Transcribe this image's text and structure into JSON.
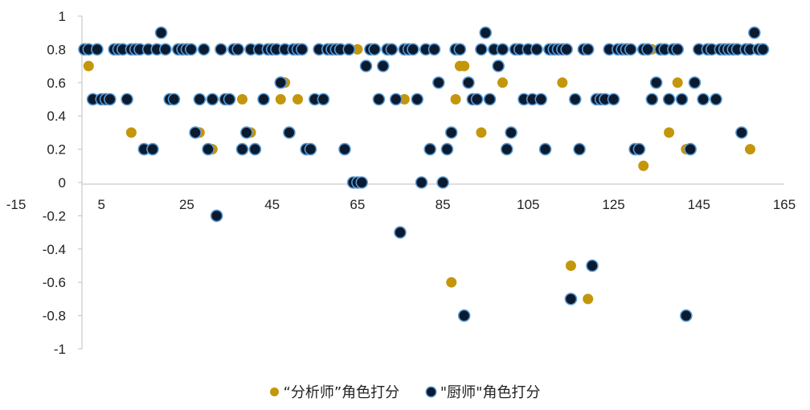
{
  "chart_data": {
    "type": "scatter",
    "xlim": [
      -15,
      165
    ],
    "ylim": [
      -1,
      1
    ],
    "x_ticks": [
      -15,
      5,
      25,
      45,
      65,
      85,
      105,
      125,
      145,
      165
    ],
    "x_tick_labels": [
      "-15",
      "5",
      "25",
      "45",
      "65",
      "85",
      "105",
      "125",
      "145",
      "165"
    ],
    "y_ticks": [
      -1,
      -0.8,
      -0.6,
      -0.4,
      -0.2,
      0,
      0.2,
      0.4,
      0.6,
      0.8,
      1
    ],
    "y_tick_labels": [
      "-1",
      "-0.8",
      "-0.6",
      "-0.4",
      "-0.2",
      "0",
      "0.2",
      "0.4",
      "0.6",
      "0.8",
      "1"
    ],
    "grid": false,
    "legend_position": "bottom",
    "series": [
      {
        "name": "“分析师”角色打分",
        "color": "#C4960C",
        "stroke": "#C4960C",
        "points": [
          [
            2,
            0.7
          ],
          [
            12,
            0.3
          ],
          [
            28,
            0.3
          ],
          [
            31,
            0.2
          ],
          [
            38,
            0.5
          ],
          [
            40,
            0.3
          ],
          [
            47,
            0.5
          ],
          [
            48,
            0.6
          ],
          [
            51,
            0.5
          ],
          [
            65,
            0.8
          ],
          [
            76,
            0.5
          ],
          [
            84,
            0.6
          ],
          [
            87,
            -0.6
          ],
          [
            88,
            0.5
          ],
          [
            89,
            0.7
          ],
          [
            90,
            0.7
          ],
          [
            92,
            0.5
          ],
          [
            94,
            0.3
          ],
          [
            99,
            0.6
          ],
          [
            113,
            0.6
          ],
          [
            115,
            -0.5
          ],
          [
            119,
            -0.7
          ],
          [
            132,
            0.1
          ],
          [
            134,
            0.8
          ],
          [
            138,
            0.3
          ],
          [
            140,
            0.6
          ],
          [
            142,
            0.2
          ],
          [
            157,
            0.2
          ]
        ]
      },
      {
        "name": "\"厨师\"角色打分",
        "color": "#0B1A2E",
        "stroke": "#5A9BD5",
        "points": [
          [
            1,
            0.8
          ],
          [
            2,
            0.8
          ],
          [
            3,
            0.5
          ],
          [
            4,
            0.8
          ],
          [
            5,
            0.5
          ],
          [
            6,
            0.5
          ],
          [
            7,
            0.5
          ],
          [
            8,
            0.8
          ],
          [
            9,
            0.8
          ],
          [
            10,
            0.8
          ],
          [
            11,
            0.5
          ],
          [
            12,
            0.8
          ],
          [
            13,
            0.8
          ],
          [
            14,
            0.8
          ],
          [
            15,
            0.2
          ],
          [
            16,
            0.8
          ],
          [
            17,
            0.2
          ],
          [
            18,
            0.8
          ],
          [
            19,
            0.9
          ],
          [
            20,
            0.8
          ],
          [
            21,
            0.5
          ],
          [
            22,
            0.5
          ],
          [
            23,
            0.8
          ],
          [
            24,
            0.8
          ],
          [
            25,
            0.8
          ],
          [
            26,
            0.8
          ],
          [
            27,
            0.3
          ],
          [
            28,
            0.5
          ],
          [
            29,
            0.8
          ],
          [
            30,
            0.2
          ],
          [
            31,
            0.5
          ],
          [
            32,
            -0.2
          ],
          [
            33,
            0.8
          ],
          [
            34,
            0.5
          ],
          [
            35,
            0.5
          ],
          [
            36,
            0.8
          ],
          [
            37,
            0.8
          ],
          [
            38,
            0.2
          ],
          [
            39,
            0.3
          ],
          [
            40,
            0.8
          ],
          [
            41,
            0.2
          ],
          [
            42,
            0.8
          ],
          [
            43,
            0.5
          ],
          [
            44,
            0.8
          ],
          [
            45,
            0.8
          ],
          [
            46,
            0.8
          ],
          [
            47,
            0.6
          ],
          [
            48,
            0.8
          ],
          [
            49,
            0.3
          ],
          [
            50,
            0.8
          ],
          [
            51,
            0.8
          ],
          [
            52,
            0.8
          ],
          [
            53,
            0.2
          ],
          [
            54,
            0.2
          ],
          [
            55,
            0.5
          ],
          [
            56,
            0.8
          ],
          [
            57,
            0.5
          ],
          [
            58,
            0.8
          ],
          [
            59,
            0.8
          ],
          [
            60,
            0.8
          ],
          [
            61,
            0.8
          ],
          [
            62,
            0.2
          ],
          [
            63,
            0.8
          ],
          [
            64,
            0
          ],
          [
            65,
            0
          ],
          [
            66,
            0
          ],
          [
            67,
            0.7
          ],
          [
            68,
            0.8
          ],
          [
            69,
            0.8
          ],
          [
            70,
            0.5
          ],
          [
            71,
            0.7
          ],
          [
            72,
            0.8
          ],
          [
            73,
            0.8
          ],
          [
            74,
            0.5
          ],
          [
            75,
            -0.3
          ],
          [
            76,
            0.8
          ],
          [
            77,
            0.8
          ],
          [
            78,
            0.8
          ],
          [
            79,
            0.5
          ],
          [
            80,
            0
          ],
          [
            81,
            0.8
          ],
          [
            82,
            0.2
          ],
          [
            83,
            0.8
          ],
          [
            84,
            0.6
          ],
          [
            85,
            0
          ],
          [
            86,
            0.2
          ],
          [
            87,
            0.3
          ],
          [
            88,
            0.8
          ],
          [
            89,
            0.8
          ],
          [
            90,
            -0.8
          ],
          [
            91,
            0.6
          ],
          [
            92,
            0.5
          ],
          [
            93,
            0.5
          ],
          [
            94,
            0.8
          ],
          [
            95,
            0.9
          ],
          [
            96,
            0.5
          ],
          [
            97,
            0.8
          ],
          [
            98,
            0.7
          ],
          [
            99,
            0.8
          ],
          [
            100,
            0.2
          ],
          [
            101,
            0.3
          ],
          [
            102,
            0.8
          ],
          [
            103,
            0.8
          ],
          [
            104,
            0.5
          ],
          [
            105,
            0.8
          ],
          [
            106,
            0.5
          ],
          [
            107,
            0.8
          ],
          [
            108,
            0.5
          ],
          [
            109,
            0.2
          ],
          [
            110,
            0.8
          ],
          [
            111,
            0.8
          ],
          [
            112,
            0.8
          ],
          [
            113,
            0.8
          ],
          [
            114,
            0.8
          ],
          [
            115,
            -0.7
          ],
          [
            116,
            0.5
          ],
          [
            117,
            0.2
          ],
          [
            118,
            0.8
          ],
          [
            119,
            0.8
          ],
          [
            120,
            -0.5
          ],
          [
            121,
            0.5
          ],
          [
            122,
            0.5
          ],
          [
            123,
            0.5
          ],
          [
            124,
            0.8
          ],
          [
            125,
            0.5
          ],
          [
            126,
            0.8
          ],
          [
            127,
            0.8
          ],
          [
            128,
            0.8
          ],
          [
            129,
            0.8
          ],
          [
            130,
            0.2
          ],
          [
            131,
            0.2
          ],
          [
            132,
            0.8
          ],
          [
            133,
            0.8
          ],
          [
            134,
            0.5
          ],
          [
            135,
            0.6
          ],
          [
            136,
            0.8
          ],
          [
            137,
            0.8
          ],
          [
            138,
            0.5
          ],
          [
            139,
            0.8
          ],
          [
            140,
            0.8
          ],
          [
            141,
            0.5
          ],
          [
            142,
            -0.8
          ],
          [
            143,
            0.2
          ],
          [
            144,
            0.6
          ],
          [
            145,
            0.8
          ],
          [
            146,
            0.5
          ],
          [
            147,
            0.8
          ],
          [
            148,
            0.8
          ],
          [
            149,
            0.5
          ],
          [
            150,
            0.8
          ],
          [
            151,
            0.8
          ],
          [
            152,
            0.8
          ],
          [
            153,
            0.8
          ],
          [
            154,
            0.8
          ],
          [
            155,
            0.3
          ],
          [
            156,
            0.8
          ],
          [
            157,
            0.8
          ],
          [
            158,
            0.9
          ],
          [
            159,
            0.8
          ],
          [
            160,
            0.8
          ]
        ]
      }
    ]
  }
}
